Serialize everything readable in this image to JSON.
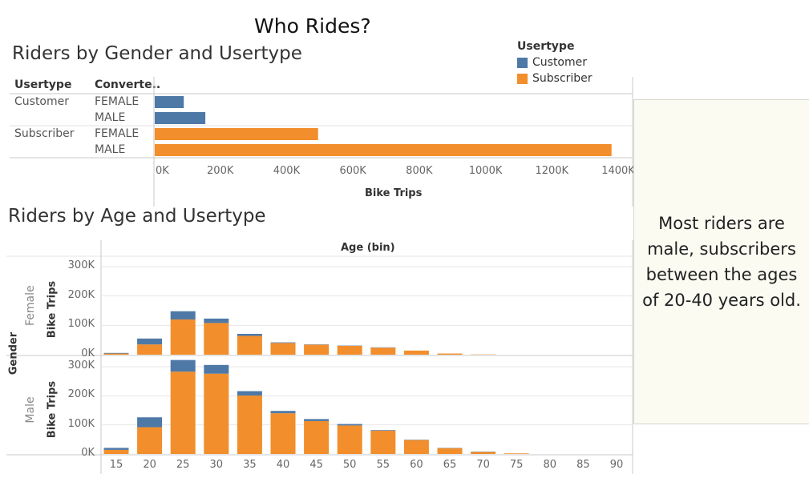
{
  "dashboard": {
    "title": "Who Rides?",
    "note": "Most riders are male, subscribers between the ages of 20-40 years old."
  },
  "colors": {
    "customer": "#4e79a7",
    "subscriber": "#f28e2b",
    "grid": "#e6e6e6",
    "border": "#c8c8c8"
  },
  "legend": {
    "title": "Usertype",
    "items": [
      {
        "label": "Customer",
        "color": "#4e79a7"
      },
      {
        "label": "Subscriber",
        "color": "#f28e2b"
      }
    ]
  },
  "chart_data": [
    {
      "type": "bar",
      "orientation": "horizontal",
      "title": "Riders by Gender and Usertype",
      "row_headers": [
        "Usertype",
        "Converte.."
      ],
      "rows": [
        {
          "usertype": "Customer",
          "gender": "FEMALE",
          "value": 90000
        },
        {
          "usertype": "Customer",
          "gender": "MALE",
          "value": 155000
        },
        {
          "usertype": "Subscriber",
          "gender": "FEMALE",
          "value": 495000
        },
        {
          "usertype": "Subscriber",
          "gender": "MALE",
          "value": 1380000
        }
      ],
      "xlabel": "Bike Trips",
      "xlim": [
        0,
        1400000
      ],
      "xticks": [
        "0K",
        "200K",
        "400K",
        "600K",
        "800K",
        "1000K",
        "1200K",
        "1400K"
      ]
    },
    {
      "type": "bar",
      "stacked": true,
      "title": "Riders by Age and Usertype",
      "column_header": "Age (bin)",
      "row_header": "Gender",
      "ylabel": "Bike Trips",
      "categories": [
        "15",
        "20",
        "25",
        "30",
        "35",
        "40",
        "45",
        "50",
        "55",
        "60",
        "65",
        "70",
        "75",
        "80",
        "85",
        "90"
      ],
      "yticks": [
        "0K",
        "100K",
        "200K",
        "300K"
      ],
      "ylim": [
        0,
        330000
      ],
      "panels": [
        {
          "label": "Female",
          "series": [
            {
              "name": "Subscriber",
              "values": [
                4000,
                35000,
                120000,
                108000,
                64000,
                40000,
                34000,
                30000,
                24000,
                14000,
                4000,
                1000,
                0,
                0,
                0,
                0
              ]
            },
            {
              "name": "Customer",
              "values": [
                2000,
                20000,
                28000,
                15000,
                7000,
                2000,
                1000,
                1000,
                1000,
                0,
                0,
                0,
                0,
                0,
                0,
                0
              ]
            }
          ]
        },
        {
          "label": "Male",
          "series": [
            {
              "name": "Subscriber",
              "values": [
                14000,
                92000,
                283000,
                276000,
                201000,
                140000,
                113000,
                98000,
                80000,
                48000,
                20000,
                7000,
                2000,
                0,
                0,
                0
              ]
            },
            {
              "name": "Customer",
              "values": [
                7000,
                34000,
                40000,
                30000,
                15000,
                8000,
                7000,
                5000,
                2000,
                1000,
                1000,
                1000,
                0,
                0,
                0,
                0
              ]
            }
          ]
        }
      ]
    }
  ]
}
